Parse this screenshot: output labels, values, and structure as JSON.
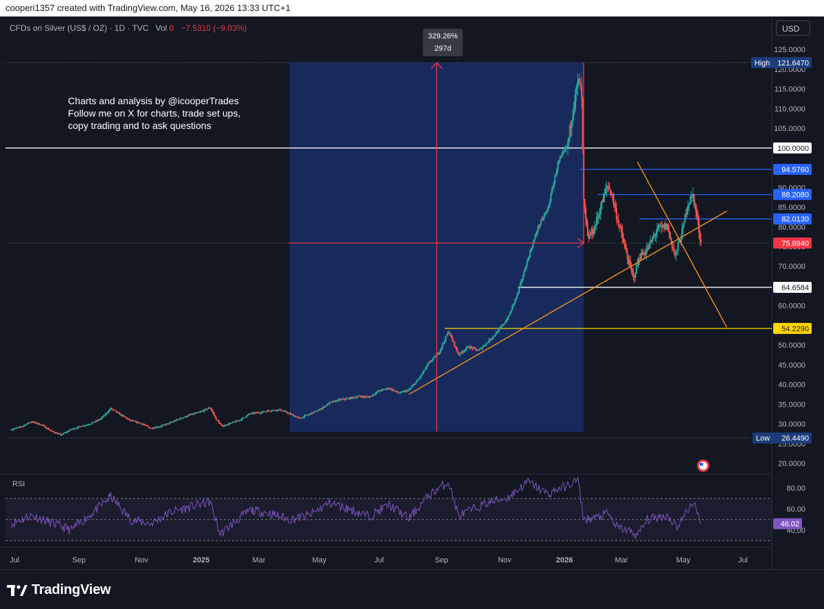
{
  "header": {
    "attribution": "cooperi1357 created with TradingView.com, May 16, 2026 13:33 UTC+1"
  },
  "legend": {
    "symbol": "CFDs on Silver (US$ / OZ) · 1D · TVC",
    "vol_label": "Vol",
    "vol_value": "0",
    "change": "−7.5310 (−9.03%)"
  },
  "currency": "USD",
  "annotation": {
    "line1": "Charts and analysis by @icooperTrades",
    "line2": "Follow me on X for charts, trade set ups,",
    "line3": "copy trading and to ask questions"
  },
  "measure": {
    "percent": "329.26%",
    "days": "297d"
  },
  "rsi_label": "RSI",
  "brand": "TradingView",
  "chart_data": {
    "type": "candlestick",
    "title": "CFDs on Silver (US$ / OZ) · 1D · TVC",
    "y_ticks": [
      "125.0000",
      "120.0000",
      "115.0000",
      "110.0000",
      "105.0000",
      "100.0000",
      "95.0000",
      "90.0000",
      "85.0000",
      "80.0000",
      "75.0000",
      "70.0000",
      "65.0000",
      "60.0000",
      "55.0000",
      "50.0000",
      "45.0000",
      "40.0000",
      "35.0000",
      "30.0000",
      "25.0000",
      "20.0000"
    ],
    "ylim": [
      17.5,
      128.5
    ],
    "x_ticks": [
      "Jul",
      "Sep",
      "Nov",
      "2025",
      "Mar",
      "May",
      "Jul",
      "Sep",
      "Nov",
      "2026",
      "Mar",
      "May",
      "Jul"
    ],
    "price_path": [
      [
        0,
        28.6
      ],
      [
        0.5,
        29.3
      ],
      [
        1,
        30.6
      ],
      [
        1.5,
        29.8
      ],
      [
        2,
        28.2
      ],
      [
        2.5,
        27.2
      ],
      [
        3,
        28.6
      ],
      [
        3.5,
        29.4
      ],
      [
        4,
        30.1
      ],
      [
        4.5,
        31.3
      ],
      [
        5,
        33.9
      ],
      [
        5.5,
        32.3
      ],
      [
        6,
        30.8
      ],
      [
        6.5,
        30.2
      ],
      [
        7,
        28.9
      ],
      [
        7.5,
        29.4
      ],
      [
        8,
        30.3
      ],
      [
        8.5,
        31.4
      ],
      [
        9,
        32.3
      ],
      [
        9.5,
        33.0
      ],
      [
        10,
        34.2
      ],
      [
        10.3,
        31.2
      ],
      [
        10.6,
        29.4
      ],
      [
        11,
        30.1
      ],
      [
        11.5,
        31.0
      ],
      [
        12,
        32.6
      ],
      [
        12.5,
        32.9
      ],
      [
        13,
        33.4
      ],
      [
        13.5,
        33.6
      ],
      [
        14,
        32.6
      ],
      [
        14.5,
        31.4
      ],
      [
        15,
        32.5
      ],
      [
        15.5,
        33.6
      ],
      [
        16,
        35.3
      ],
      [
        16.5,
        36.1
      ],
      [
        17,
        36.5
      ],
      [
        17.5,
        37.0
      ],
      [
        18,
        36.8
      ],
      [
        18.5,
        38.4
      ],
      [
        19,
        39.1
      ],
      [
        19.5,
        37.8
      ],
      [
        20,
        38.6
      ],
      [
        20.5,
        41.4
      ],
      [
        21,
        45.4
      ],
      [
        21.5,
        48.0
      ],
      [
        22,
        53.5
      ],
      [
        22.5,
        47.6
      ],
      [
        23,
        49.6
      ],
      [
        23.5,
        48.6
      ],
      [
        24,
        51.0
      ],
      [
        24.5,
        53.6
      ],
      [
        25,
        57.0
      ],
      [
        25.5,
        63.4
      ],
      [
        26,
        72.0
      ],
      [
        26.5,
        79.8
      ],
      [
        27,
        84.6
      ],
      [
        27.5,
        96.0
      ],
      [
        28,
        100.8
      ],
      [
        28.3,
        111.6
      ],
      [
        28.5,
        116.2
      ],
      [
        28.6,
        116.7
      ],
      [
        28.7,
        112.0
      ],
      [
        28.8,
        86.2
      ],
      [
        29,
        77.0
      ],
      [
        29.3,
        79.2
      ],
      [
        29.5,
        82.4
      ],
      [
        29.8,
        87.4
      ],
      [
        30,
        90.5
      ],
      [
        30.2,
        88.5
      ],
      [
        30.5,
        82.0
      ],
      [
        31,
        72.2
      ],
      [
        31.3,
        67.0
      ],
      [
        31.6,
        72.4
      ],
      [
        32,
        74.2
      ],
      [
        32.5,
        79.3
      ],
      [
        33,
        80.2
      ],
      [
        33.4,
        72.5
      ],
      [
        33.8,
        79.5
      ],
      [
        34,
        85.6
      ],
      [
        34.3,
        88.1
      ],
      [
        34.5,
        82.4
      ],
      [
        34.7,
        75.9
      ]
    ],
    "rsi": {
      "ylim": [
        25,
        92
      ],
      "ticks": [
        "80.00",
        "60.00",
        "40.00"
      ],
      "levels": [
        70,
        50,
        30
      ],
      "current": "46.02",
      "path": [
        [
          0,
          46
        ],
        [
          1,
          54
        ],
        [
          2,
          47
        ],
        [
          3,
          40
        ],
        [
          4,
          55
        ],
        [
          5,
          72
        ],
        [
          6,
          50
        ],
        [
          7,
          46
        ],
        [
          8,
          57
        ],
        [
          9,
          62
        ],
        [
          10,
          67
        ],
        [
          10.5,
          36
        ],
        [
          11,
          44
        ],
        [
          12,
          59
        ],
        [
          13,
          56
        ],
        [
          14,
          50
        ],
        [
          15,
          54
        ],
        [
          16,
          66
        ],
        [
          17,
          60
        ],
        [
          18,
          53
        ],
        [
          19,
          64
        ],
        [
          20,
          51
        ],
        [
          21,
          73
        ],
        [
          22,
          86
        ],
        [
          22.5,
          53
        ],
        [
          23,
          58
        ],
        [
          24,
          66
        ],
        [
          25,
          71
        ],
        [
          26,
          86
        ],
        [
          27,
          74
        ],
        [
          27.5,
          79
        ],
        [
          28,
          82
        ],
        [
          28.5,
          88
        ],
        [
          28.8,
          50
        ],
        [
          29.5,
          52
        ],
        [
          30,
          56
        ],
        [
          30.5,
          42
        ],
        [
          31,
          40
        ],
        [
          31.5,
          35
        ],
        [
          32,
          50
        ],
        [
          33,
          54
        ],
        [
          33.5,
          43
        ],
        [
          34,
          58
        ],
        [
          34.3,
          67
        ],
        [
          34.7,
          46
        ]
      ]
    },
    "levels": [
      {
        "value": 100,
        "label": "100.0000",
        "color": "#ffffff"
      },
      {
        "value": 94.576,
        "label": "94.5760",
        "color": "#2962ff"
      },
      {
        "value": 88.208,
        "label": "88.2080",
        "color": "#2962ff"
      },
      {
        "value": 82.013,
        "label": "82.0130",
        "color": "#2962ff"
      },
      {
        "value": 64.6584,
        "label": "64.6584",
        "color": "#ffffff"
      },
      {
        "value": 54.229,
        "label": "54.2290",
        "color": "#ffd600"
      }
    ],
    "current_price": {
      "value": 75.894,
      "label": "75.8940",
      "color": "#f23645"
    },
    "high": {
      "value": 121.647,
      "label": "121.6470",
      "tag": "High"
    },
    "low": {
      "value": 26.449,
      "label": "26.4490",
      "tag": "Low"
    },
    "trendlines": [
      {
        "color": "#f7931a",
        "from": [
          20.0,
          37.5
        ],
        "to": [
          36.0,
          84.0
        ]
      },
      {
        "color": "#f7931a",
        "from": [
          31.5,
          96.5
        ],
        "to": [
          36.0,
          54.5
        ]
      }
    ],
    "measure_range": {
      "x_start": 14.0,
      "x_end": 28.8,
      "y_low": 28.0,
      "y_high": 121.647,
      "entry": 75.894
    },
    "colors": {
      "up": "#26a69a",
      "down": "#ef5350",
      "rsi": "#7e57c2",
      "measure": "#f23645",
      "range_fill": "#1e3a8a"
    }
  }
}
